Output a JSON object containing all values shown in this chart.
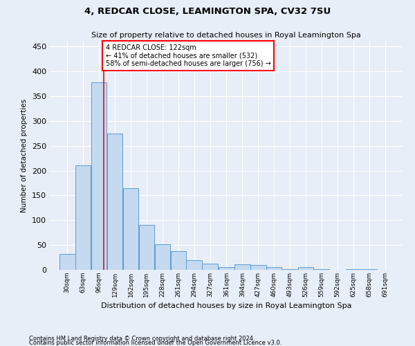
{
  "title_line1": "4, REDCAR CLOSE, LEAMINGTON SPA, CV32 7SU",
  "title_line2": "Size of property relative to detached houses in Royal Leamington Spa",
  "xlabel": "Distribution of detached houses by size in Royal Leamington Spa",
  "ylabel": "Number of detached properties",
  "footer_line1": "Contains HM Land Registry data © Crown copyright and database right 2024.",
  "footer_line2": "Contains public sector information licensed under the Open Government Licence v3.0.",
  "bar_edges": [
    30,
    63,
    96,
    129,
    162,
    195,
    228,
    261,
    294,
    327,
    361,
    394,
    427,
    460,
    493,
    526,
    559,
    592,
    625,
    658,
    691
  ],
  "bar_heights": [
    32,
    210,
    378,
    275,
    165,
    90,
    52,
    38,
    20,
    12,
    6,
    11,
    10,
    5,
    2,
    5,
    1,
    0,
    1,
    1,
    0
  ],
  "bar_color": "#c5d9f0",
  "bar_edge_color": "#5b9bd5",
  "red_line_x": 122,
  "annotation_text": "4 REDCAR CLOSE: 122sqm\n← 41% of detached houses are smaller (532)\n58% of semi-detached houses are larger (756) →",
  "annotation_box_color": "white",
  "annotation_box_edge_color": "red",
  "ylim": [
    0,
    460
  ],
  "yticks": [
    0,
    50,
    100,
    150,
    200,
    250,
    300,
    350,
    400,
    450
  ],
  "bg_color": "#e8eef7",
  "plot_bg_color": "#e8eef7",
  "grid_color": "white",
  "bin_width": 33
}
